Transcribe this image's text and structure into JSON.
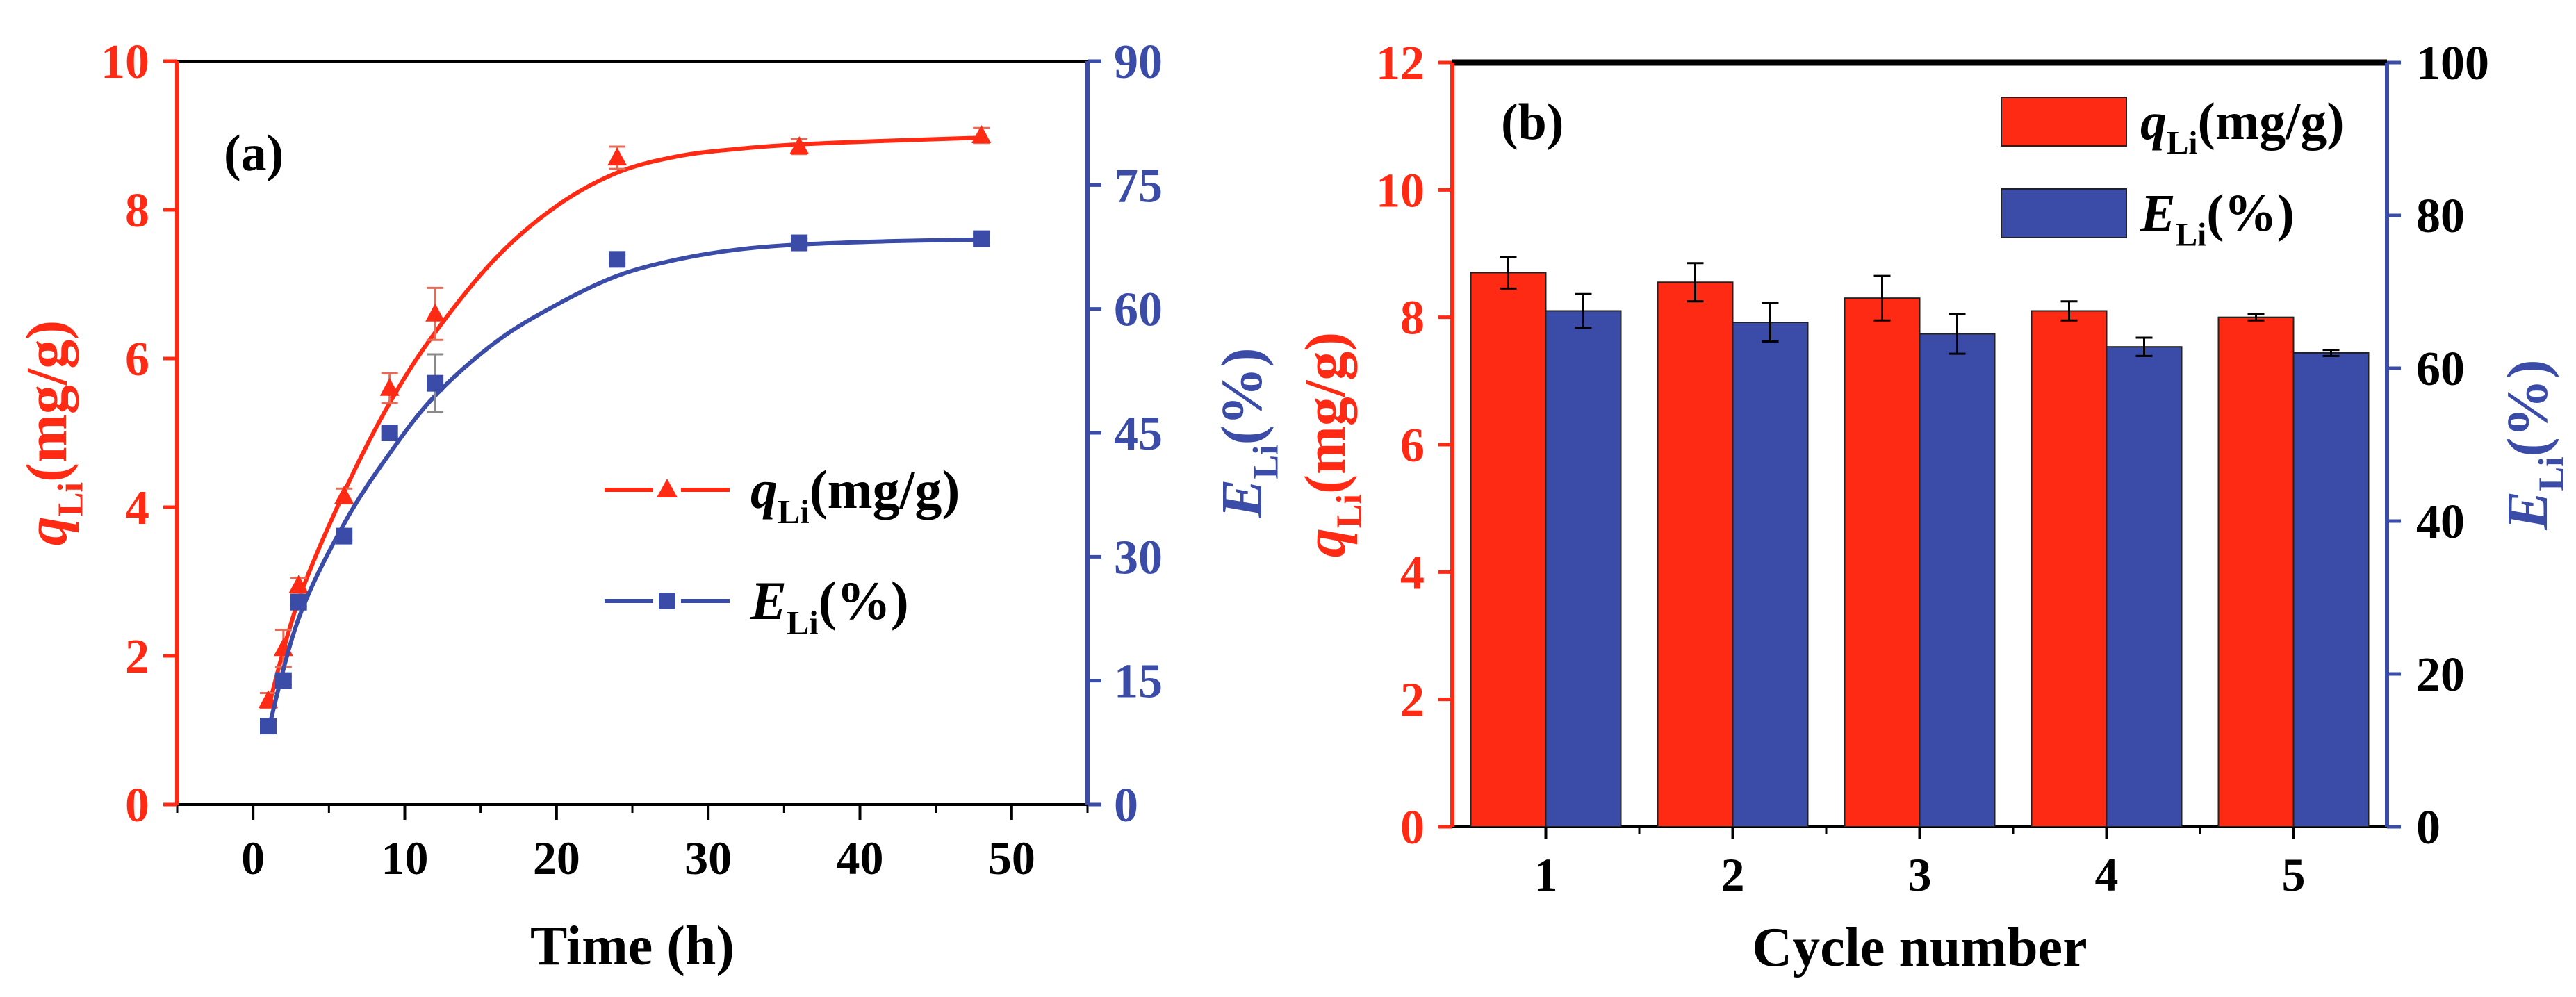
{
  "colors": {
    "q": "#ff2a14",
    "e": "#3a4ca8",
    "axis": "#000000"
  },
  "chart_data": [
    {
      "type": "line",
      "panel_label": "(a)",
      "xlabel": "Time (h)",
      "ylabel_left": {
        "main": "q",
        "sub": "Li",
        "unit": "(mg/g)"
      },
      "ylabel_right": {
        "main": "E",
        "sub": "Li",
        "unit": "(%)"
      },
      "xlim": [
        -5,
        55
      ],
      "ylim_left": [
        0,
        10
      ],
      "ylim_right": [
        0,
        90
      ],
      "x_ticks": [
        "0",
        "10",
        "20",
        "30",
        "40",
        "50"
      ],
      "y_ticks_left": [
        "0",
        "2",
        "4",
        "6",
        "8",
        "10"
      ],
      "y_ticks_right": [
        "0",
        "15",
        "30",
        "45",
        "60",
        "75",
        "90"
      ],
      "legend_position": "center-right",
      "series": [
        {
          "name": {
            "main": "q",
            "sub": "Li",
            "unit": "(mg/g)"
          },
          "axis": "left",
          "marker": "triangle",
          "x": [
            1,
            2,
            3,
            6,
            9,
            12,
            24,
            36,
            48
          ],
          "y": [
            1.4,
            2.1,
            2.95,
            4.15,
            5.6,
            6.6,
            8.7,
            8.85,
            9.0
          ],
          "err": [
            0.1,
            0.25,
            0.1,
            0.1,
            0.2,
            0.35,
            0.15,
            0.1,
            0.1
          ],
          "fit_x": [
            1,
            3,
            6,
            9,
            12,
            16,
            20,
            24,
            28,
            32,
            36,
            42,
            48
          ],
          "fit_y": [
            1.3,
            2.75,
            4.2,
            5.4,
            6.35,
            7.35,
            8.05,
            8.5,
            8.72,
            8.82,
            8.88,
            8.93,
            8.97
          ]
        },
        {
          "name": {
            "main": "E",
            "sub": "Li",
            "unit": "(%)"
          },
          "axis": "right",
          "marker": "square",
          "x": [
            1,
            2,
            3,
            6,
            9,
            12,
            24,
            36,
            48
          ],
          "y": [
            9.5,
            15.0,
            24.5,
            32.5,
            45.0,
            51.0,
            66.0,
            68.0,
            68.5
          ],
          "err": [
            0.5,
            0.5,
            0.5,
            0.5,
            0.5,
            3.5,
            0.5,
            0.5,
            0.5
          ],
          "fit_x": [
            1,
            3,
            6,
            9,
            12,
            16,
            20,
            24,
            28,
            32,
            36,
            42,
            48
          ],
          "fit_y": [
            9.0,
            22.5,
            34.0,
            42.5,
            49.5,
            56.0,
            60.5,
            64.0,
            66.0,
            67.2,
            67.8,
            68.2,
            68.4
          ]
        }
      ]
    },
    {
      "type": "bar",
      "panel_label": "(b)",
      "xlabel": "Cycle number",
      "ylabel_left": {
        "main": "q",
        "sub": "Li",
        "unit": "(mg/g)"
      },
      "ylabel_right": {
        "main": "E",
        "sub": "Li",
        "unit": "(%)"
      },
      "categories": [
        "1",
        "2",
        "3",
        "4",
        "5"
      ],
      "ylim_left": [
        0,
        12
      ],
      "ylim_right": [
        0,
        100
      ],
      "y_ticks_left": [
        "0",
        "2",
        "4",
        "6",
        "8",
        "10",
        "12"
      ],
      "y_ticks_right": [
        "0",
        "20",
        "40",
        "60",
        "80",
        "100"
      ],
      "legend_position": "top-right",
      "series": [
        {
          "name": {
            "main": "q",
            "sub": "Li",
            "unit": "(mg/g)"
          },
          "axis": "left",
          "values": [
            8.7,
            8.55,
            8.3,
            8.1,
            8.0
          ],
          "err": [
            0.25,
            0.3,
            0.35,
            0.15,
            0.05
          ]
        },
        {
          "name": {
            "main": "E",
            "sub": "Li",
            "unit": "(%)"
          },
          "axis": "right",
          "values": [
            67.5,
            66.0,
            64.5,
            62.8,
            62.0
          ],
          "err": [
            2.2,
            2.5,
            2.6,
            1.2,
            0.4
          ]
        }
      ]
    }
  ]
}
